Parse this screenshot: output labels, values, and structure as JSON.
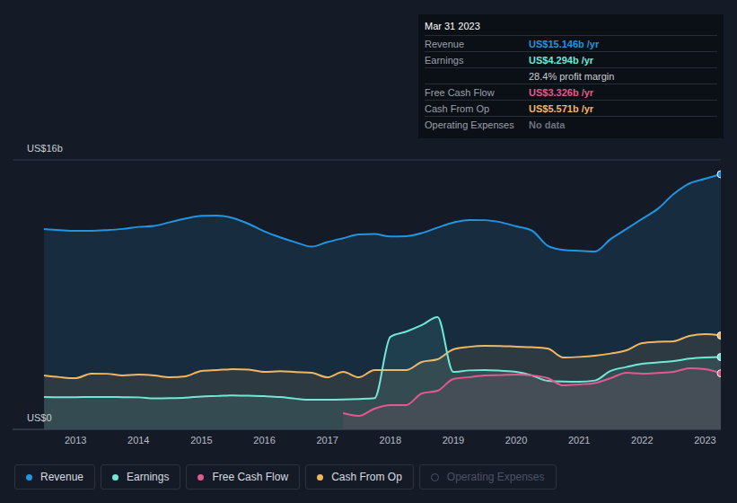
{
  "chart_data": {
    "type": "area",
    "x": [
      2012.5,
      2012.75,
      2013,
      2013.25,
      2013.5,
      2013.75,
      2014,
      2014.25,
      2014.5,
      2014.75,
      2015,
      2015.25,
      2015.5,
      2015.75,
      2016,
      2016.25,
      2016.5,
      2016.75,
      2017,
      2017.25,
      2017.5,
      2017.75,
      2018,
      2018.25,
      2018.5,
      2018.75,
      2019,
      2019.25,
      2019.5,
      2019.75,
      2020,
      2020.25,
      2020.5,
      2020.75,
      2021,
      2021.25,
      2021.5,
      2021.75,
      2022,
      2022.25,
      2022.5,
      2022.75,
      2023,
      2023.25
    ],
    "xlim": [
      2012,
      2023.25
    ],
    "xticks": [
      2013,
      2014,
      2015,
      2016,
      2017,
      2018,
      2019,
      2020,
      2021,
      2022,
      2023
    ],
    "ylim": [
      0,
      16
    ],
    "yticks": [
      {
        "value": 0,
        "label": "US$0"
      },
      {
        "value": 16,
        "label": "US$16b"
      }
    ],
    "grid": true,
    "series": [
      {
        "name": "Revenue",
        "color": "#2394df",
        "values": [
          11.89,
          11.83,
          11.79,
          11.79,
          11.83,
          11.9,
          12.02,
          12.08,
          12.3,
          12.52,
          12.68,
          12.7,
          12.55,
          12.2,
          11.75,
          11.4,
          11.1,
          10.85,
          11.12,
          11.35,
          11.57,
          11.6,
          11.45,
          11.47,
          11.65,
          11.98,
          12.28,
          12.43,
          12.42,
          12.3,
          12.05,
          11.8,
          10.9,
          10.65,
          10.6,
          10.56,
          11.3,
          11.9,
          12.5,
          13.1,
          13.97,
          14.6,
          14.88,
          15.146
        ]
      },
      {
        "name": "Earnings",
        "color": "#71e7d6",
        "values": [
          1.92,
          1.91,
          1.91,
          1.92,
          1.92,
          1.91,
          1.9,
          1.84,
          1.85,
          1.88,
          1.95,
          1.98,
          2.02,
          2.0,
          1.97,
          1.92,
          1.82,
          1.76,
          1.76,
          1.77,
          1.8,
          1.85,
          5.49,
          5.8,
          6.19,
          6.67,
          3.41,
          3.5,
          3.52,
          3.48,
          3.41,
          3.2,
          2.88,
          2.84,
          2.83,
          2.9,
          3.47,
          3.7,
          3.89,
          3.97,
          4.05,
          4.2,
          4.27,
          4.294
        ]
      },
      {
        "name": "Free Cash Flow",
        "color": "#e05a8e",
        "values": [
          null,
          null,
          null,
          null,
          null,
          null,
          null,
          null,
          null,
          null,
          null,
          null,
          null,
          null,
          null,
          null,
          null,
          null,
          null,
          0.96,
          0.8,
          1.23,
          1.44,
          1.44,
          2.13,
          2.29,
          2.99,
          3.1,
          3.2,
          3.22,
          3.25,
          3.2,
          3.04,
          2.61,
          2.67,
          2.75,
          3.04,
          3.36,
          3.31,
          3.35,
          3.41,
          3.63,
          3.57,
          3.326
        ]
      },
      {
        "name": "Cash From Op",
        "color": "#f2b661",
        "values": [
          3.2,
          3.1,
          3.04,
          3.31,
          3.3,
          3.2,
          3.25,
          3.2,
          3.09,
          3.15,
          3.47,
          3.52,
          3.57,
          3.55,
          3.41,
          3.45,
          3.4,
          3.36,
          3.09,
          3.41,
          3.09,
          3.52,
          3.52,
          3.52,
          4.0,
          4.16,
          4.75,
          4.9,
          4.96,
          4.95,
          4.91,
          4.88,
          4.8,
          4.27,
          4.3,
          4.37,
          4.5,
          4.69,
          5.12,
          5.2,
          5.23,
          5.55,
          5.65,
          5.571
        ]
      },
      {
        "name": "Operating Expenses",
        "color": "#2c3242",
        "values": [
          null,
          null,
          null,
          null,
          null,
          null,
          null,
          null,
          null,
          null,
          null,
          null,
          null,
          null,
          null,
          null,
          null,
          null,
          null,
          null,
          null,
          null,
          null,
          null,
          null,
          null,
          null,
          null,
          null,
          null,
          null,
          null,
          null,
          null,
          null,
          null,
          null,
          null,
          null,
          null,
          null,
          null,
          null,
          null
        ]
      }
    ]
  },
  "info_box": {
    "title": "Mar 31 2023",
    "rows": [
      {
        "label": "Revenue",
        "value": "US$15.146b /yr",
        "color": "#2394df"
      },
      {
        "label": "Earnings",
        "value": "US$4.294b /yr",
        "color": "#71e7d6"
      },
      {
        "value": "28.4% profit margin",
        "color": "#c9ccd3"
      },
      {
        "label": "Free Cash Flow",
        "value": "US$3.326b /yr",
        "color": "#e05a8e"
      },
      {
        "label": "Cash From Op",
        "value": "US$5.571b /yr",
        "color": "#f2b661"
      },
      {
        "label": "Operating Expenses",
        "value": "No data",
        "color": "#6b7280"
      }
    ]
  }
}
